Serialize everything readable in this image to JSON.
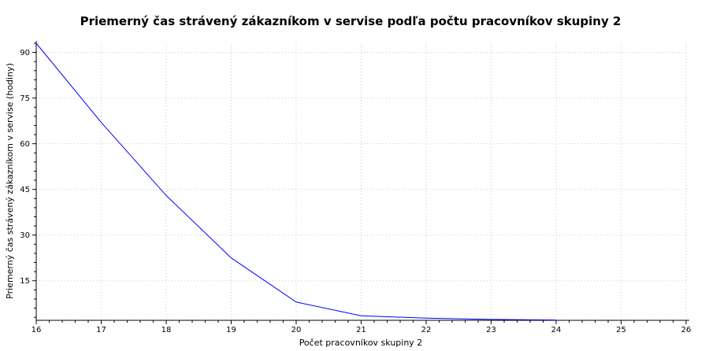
{
  "chart_data": {
    "type": "line",
    "title": "Priemerný čas strávený zákazníkom v servise podľa počtu pracovníkov skupiny 2",
    "xlabel": "Počet pracovníkov skupiny 2",
    "ylabel": "Priemerný čas strávený zákazníkom v servise (hodiny)",
    "xlim": [
      16,
      26
    ],
    "ylim": [
      2,
      93
    ],
    "x_ticks": [
      16,
      17,
      18,
      19,
      20,
      21,
      22,
      23,
      24,
      25,
      26
    ],
    "y_ticks": [
      15,
      30,
      45,
      60,
      75,
      90
    ],
    "grid": true,
    "colors": {
      "line": "#0000ff"
    },
    "series": [
      {
        "x": [
          16,
          17,
          18,
          19,
          20,
          21,
          22,
          23,
          24
        ],
        "values": [
          93,
          67,
          43,
          22.5,
          8,
          3.5,
          2.7,
          2.3,
          2.1
        ]
      }
    ]
  }
}
